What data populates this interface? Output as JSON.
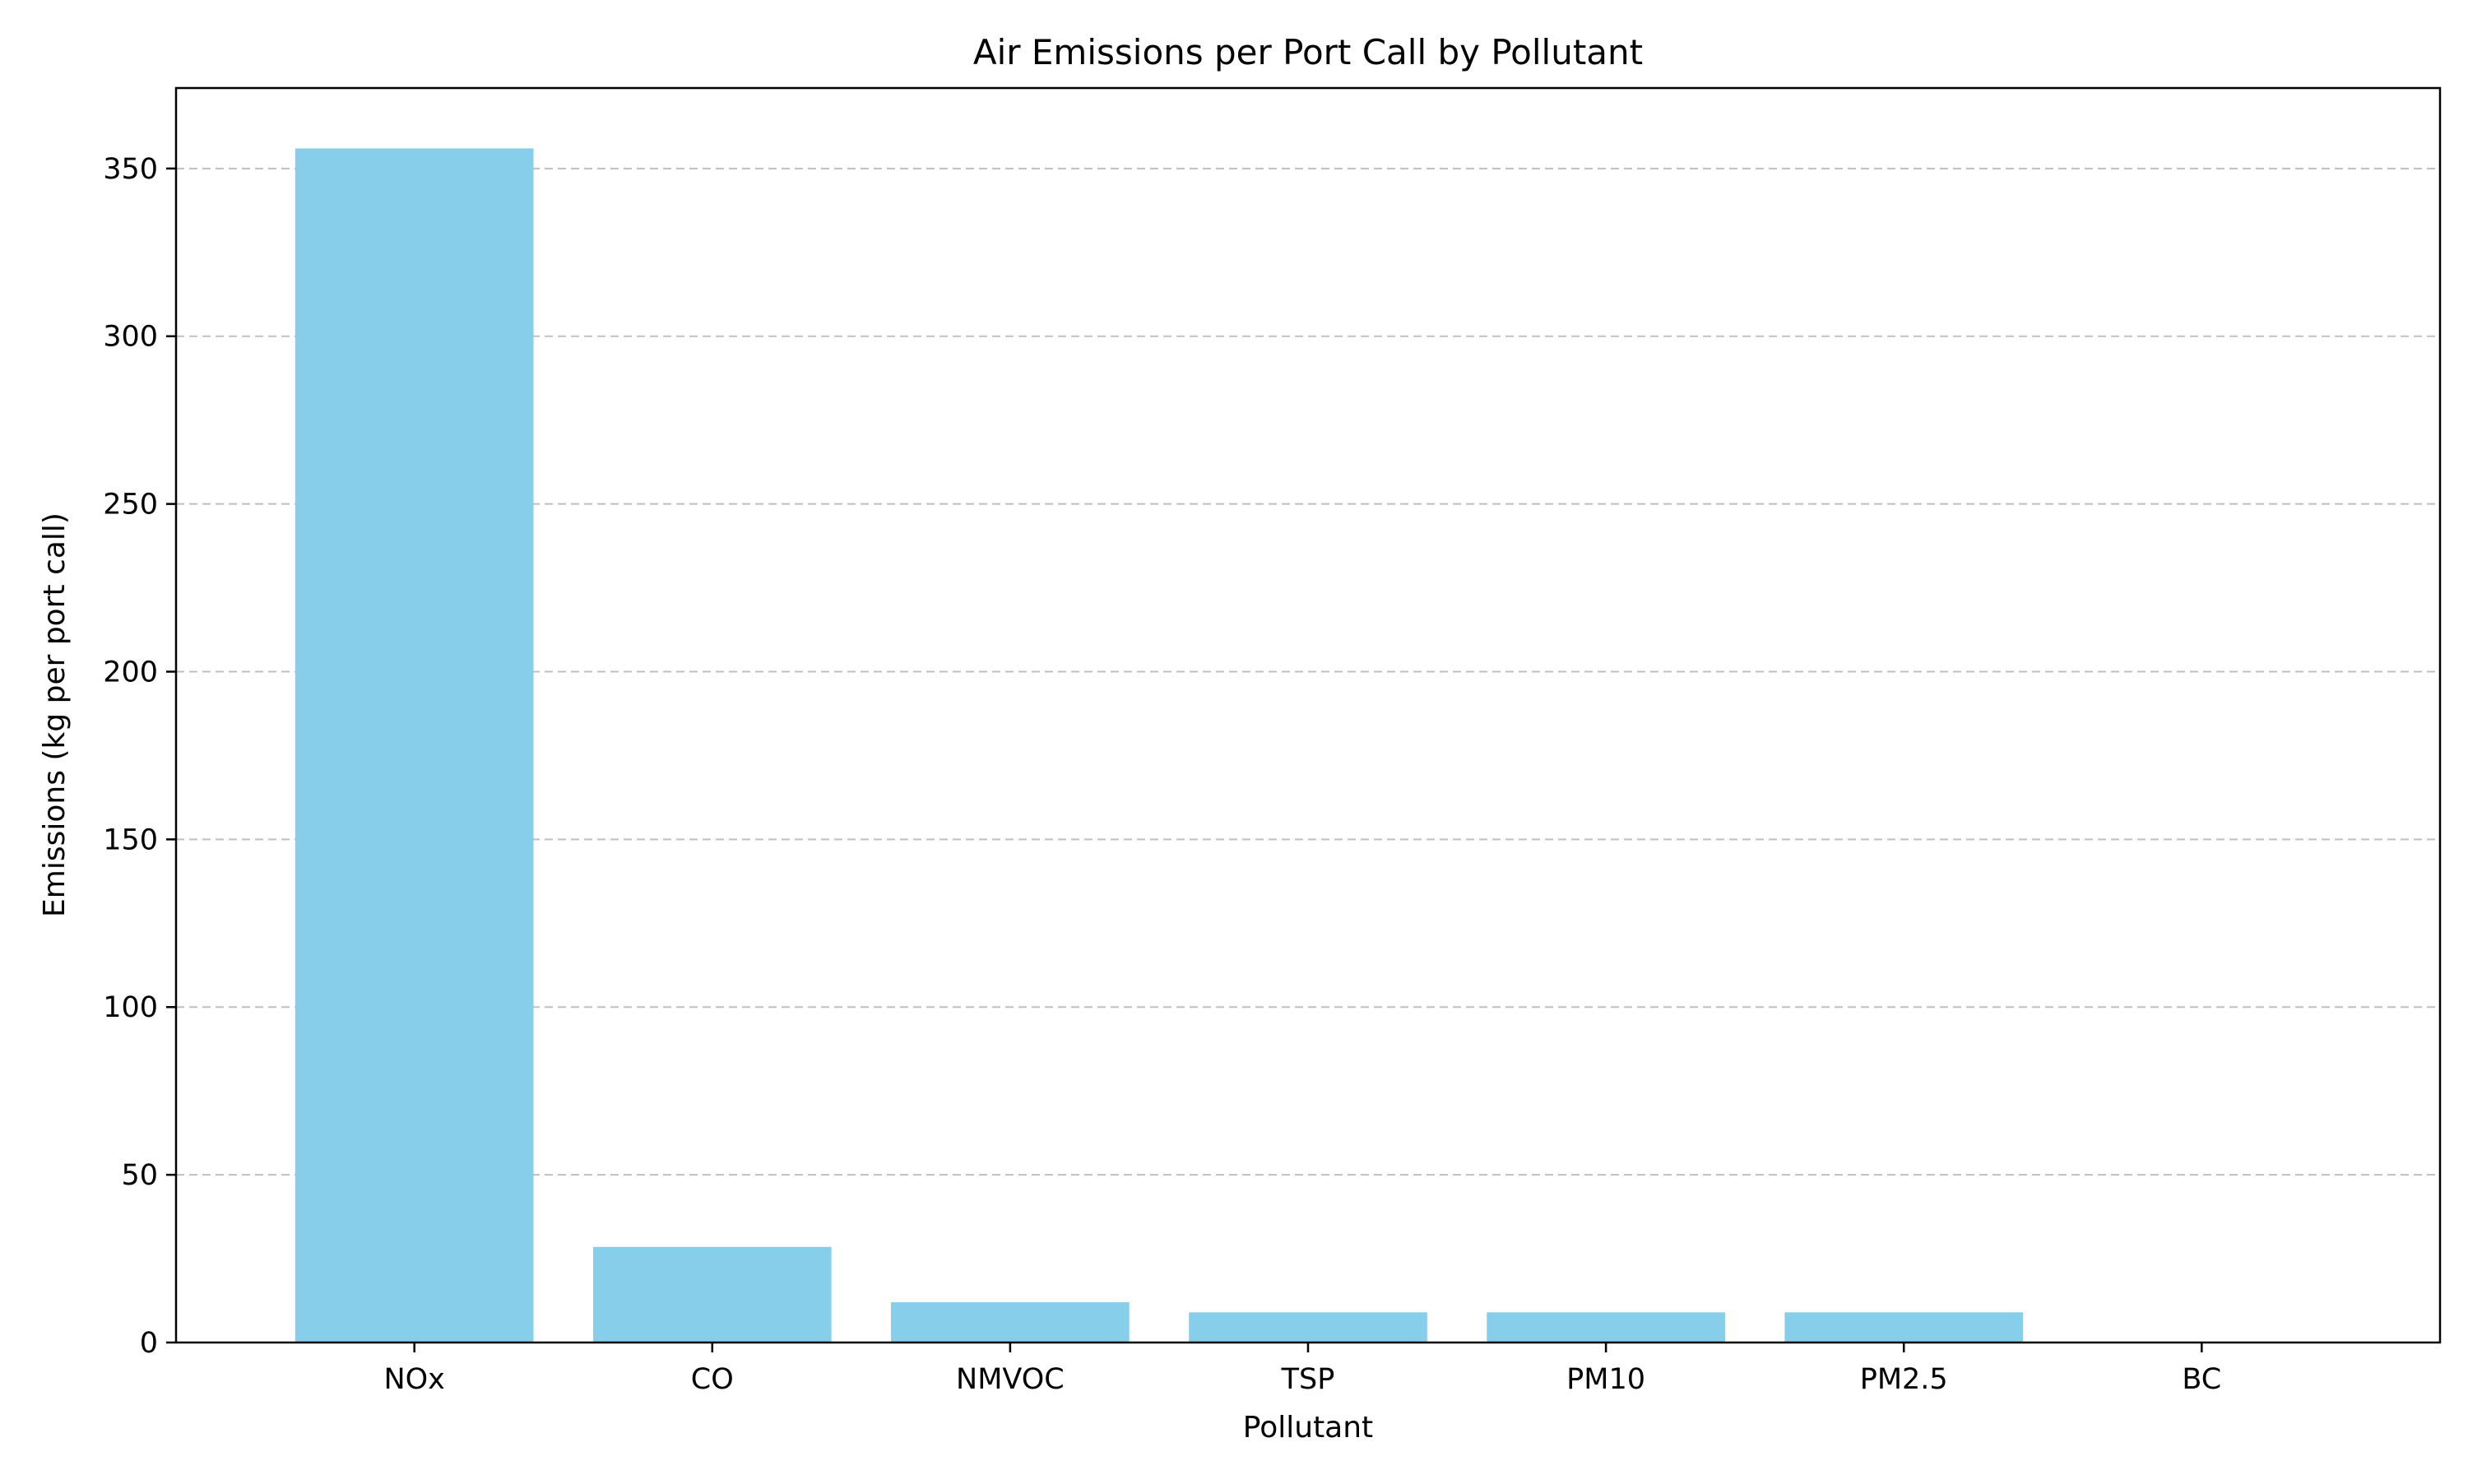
{
  "chart_data": {
    "type": "bar",
    "title": "Air Emissions per Port Call by Pollutant",
    "xlabel": "Pollutant",
    "ylabel": "Emissions (kg per port call)",
    "categories": [
      "NOx",
      "CO",
      "NMVOC",
      "TSP",
      "PM10",
      "PM2.5",
      "BC"
    ],
    "values": [
      356,
      28.5,
      12,
      9,
      9,
      9,
      0.2
    ],
    "ylim": [
      0,
      374
    ],
    "yticks": [
      0,
      50,
      100,
      150,
      200,
      250,
      300,
      350
    ],
    "grid": {
      "axis": "y",
      "style": "dashed",
      "color": "#bfbfbf"
    },
    "bar_color": "#87ceeb",
    "axis_color": "#000000"
  }
}
